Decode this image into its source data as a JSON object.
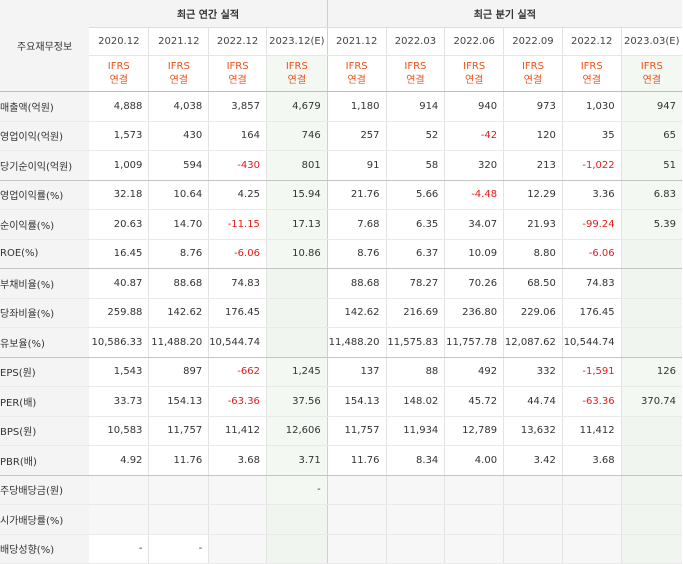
{
  "header": {
    "corner_label": "주요재무정보",
    "annual_group": "최근 연간 실적",
    "quarter_group": "최근 분기 실적"
  },
  "periods": [
    {
      "date": "2020.12",
      "basis_line1": "IFRS",
      "basis_line2": "연결",
      "estimate": false
    },
    {
      "date": "2021.12",
      "basis_line1": "IFRS",
      "basis_line2": "연결",
      "estimate": false
    },
    {
      "date": "2022.12",
      "basis_line1": "IFRS",
      "basis_line2": "연결",
      "estimate": false
    },
    {
      "date": "2023.12(E)",
      "basis_line1": "IFRS",
      "basis_line2": "연결",
      "estimate": true
    },
    {
      "date": "2021.12",
      "basis_line1": "IFRS",
      "basis_line2": "연결",
      "estimate": false
    },
    {
      "date": "2022.03",
      "basis_line1": "IFRS",
      "basis_line2": "연결",
      "estimate": false
    },
    {
      "date": "2022.06",
      "basis_line1": "IFRS",
      "basis_line2": "연결",
      "estimate": false
    },
    {
      "date": "2022.09",
      "basis_line1": "IFRS",
      "basis_line2": "연결",
      "estimate": false
    },
    {
      "date": "2022.12",
      "basis_line1": "IFRS",
      "basis_line2": "연결",
      "estimate": false
    },
    {
      "date": "2023.03(E)",
      "basis_line1": "IFRS",
      "basis_line2": "연결",
      "estimate": true
    }
  ],
  "rows": [
    {
      "label": "매출액(억원)",
      "values": [
        "4,888",
        "4,038",
        "3,857",
        "4,679",
        "1,180",
        "914",
        "940",
        "973",
        "1,030",
        "947"
      ]
    },
    {
      "label": "영업이익(억원)",
      "values": [
        "1,573",
        "430",
        "164",
        "746",
        "257",
        "52",
        "-42",
        "120",
        "35",
        "65"
      ]
    },
    {
      "label": "당기순이익(억원)",
      "values": [
        "1,009",
        "594",
        "-430",
        "801",
        "91",
        "58",
        "320",
        "213",
        "-1,022",
        "51"
      ]
    },
    {
      "label": "영업이익률(%)",
      "values": [
        "32.18",
        "10.64",
        "4.25",
        "15.94",
        "21.76",
        "5.66",
        "-4.48",
        "12.29",
        "3.36",
        "6.83"
      ]
    },
    {
      "label": "순이익률(%)",
      "values": [
        "20.63",
        "14.70",
        "-11.15",
        "17.13",
        "7.68",
        "6.35",
        "34.07",
        "21.93",
        "-99.24",
        "5.39"
      ]
    },
    {
      "label": "ROE(%)",
      "values": [
        "16.45",
        "8.76",
        "-6.06",
        "10.86",
        "8.76",
        "6.37",
        "10.09",
        "8.80",
        "-6.06",
        ""
      ]
    },
    {
      "label": "부채비율(%)",
      "values": [
        "40.87",
        "88.68",
        "74.83",
        "",
        "88.68",
        "78.27",
        "70.26",
        "68.50",
        "74.83",
        ""
      ]
    },
    {
      "label": "당좌비율(%)",
      "values": [
        "259.88",
        "142.62",
        "176.45",
        "",
        "142.62",
        "216.69",
        "236.80",
        "229.06",
        "176.45",
        ""
      ]
    },
    {
      "label": "유보율(%)",
      "values": [
        "10,586.33",
        "11,488.20",
        "10,544.74",
        "",
        "11,488.20",
        "11,575.83",
        "11,757.78",
        "12,087.62",
        "10,544.74",
        ""
      ]
    },
    {
      "label": "EPS(원)",
      "values": [
        "1,543",
        "897",
        "-662",
        "1,245",
        "137",
        "88",
        "492",
        "332",
        "-1,591",
        "126"
      ]
    },
    {
      "label": "PER(배)",
      "values": [
        "33.73",
        "154.13",
        "-63.36",
        "37.56",
        "154.13",
        "148.02",
        "45.72",
        "44.74",
        "-63.36",
        "370.74"
      ]
    },
    {
      "label": "BPS(원)",
      "values": [
        "10,583",
        "11,757",
        "11,412",
        "12,606",
        "11,757",
        "11,934",
        "12,789",
        "13,632",
        "11,412",
        ""
      ]
    },
    {
      "label": "PBR(배)",
      "values": [
        "4.92",
        "11.76",
        "3.68",
        "3.71",
        "11.76",
        "8.34",
        "4.00",
        "3.42",
        "3.68",
        ""
      ]
    },
    {
      "label": "주당배당금(원)",
      "values": [
        "",
        "",
        "",
        "-",
        "",
        "",
        "",
        "",
        "",
        ""
      ]
    },
    {
      "label": "시가배당률(%)",
      "values": [
        "",
        "",
        "",
        "",
        "",
        "",
        "",
        "",
        "",
        ""
      ]
    },
    {
      "label": "배당성향(%)",
      "values": [
        "-",
        "-",
        "",
        "",
        "",
        "",
        "",
        "",
        "",
        ""
      ]
    }
  ],
  "colors": {
    "basis_orange": "#e8541e",
    "negative_red": "#e21b1b",
    "header_bg": "#f4f4f4",
    "estimate_bg": "#f3f8f3"
  }
}
